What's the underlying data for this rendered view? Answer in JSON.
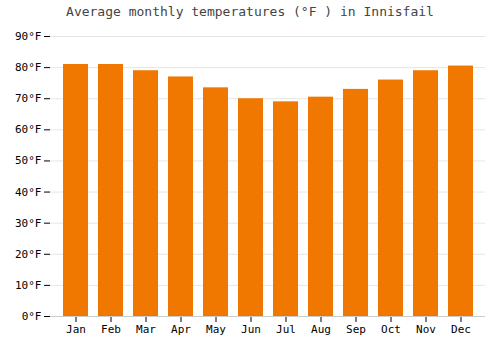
{
  "chart_data": {
    "type": "bar",
    "title": "Average monthly temperatures (°F ) in Innisfail",
    "categories": [
      "Jan",
      "Feb",
      "Mar",
      "Apr",
      "May",
      "Jun",
      "Jul",
      "Aug",
      "Sep",
      "Oct",
      "Nov",
      "Dec"
    ],
    "values": [
      81,
      81,
      79,
      77,
      73.5,
      70,
      69,
      70.5,
      73,
      76,
      79,
      80.5
    ],
    "color": "#F07800",
    "ylim": [
      0,
      90
    ],
    "yticks": [
      {
        "value": 0,
        "label": "0°F"
      },
      {
        "value": 10,
        "label": "10°F"
      },
      {
        "value": 20,
        "label": "20°F"
      },
      {
        "value": 30,
        "label": "30°F"
      },
      {
        "value": 40,
        "label": "40°F"
      },
      {
        "value": 50,
        "label": "50°F"
      },
      {
        "value": 60,
        "label": "60°F"
      },
      {
        "value": 70,
        "label": "70°F"
      },
      {
        "value": 80,
        "label": "80°F"
      },
      {
        "value": 90,
        "label": "90°F"
      }
    ],
    "grid": true
  }
}
